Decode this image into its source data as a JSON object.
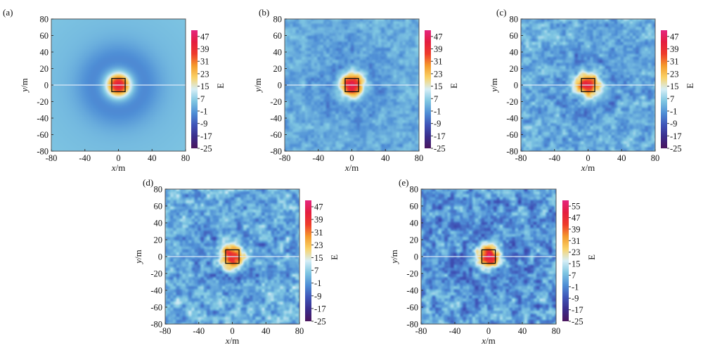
{
  "chart_data": [
    {
      "type": "heatmap",
      "panel_label": "(a)",
      "xlabel": "x",
      "xunit": "/m",
      "ylabel": "y",
      "yunit": "/m",
      "xlim": [
        -80,
        80
      ],
      "ylim": [
        -80,
        80
      ],
      "xticks": [
        -80,
        -40,
        0,
        40,
        80
      ],
      "yticks": [
        80,
        60,
        40,
        20,
        0,
        -20,
        -40,
        -60,
        -80
      ],
      "colorbar_title": "E",
      "colorbar_ticks": [
        47,
        39,
        31,
        23,
        15,
        7,
        -1,
        -9,
        -17,
        -25
      ],
      "color_range": [
        -25,
        51
      ],
      "background_level": 2,
      "noise_amplitude": 0,
      "anomaly": {
        "center": [
          0,
          0
        ],
        "peak": 45,
        "radius": 14,
        "square_half_width": 8
      },
      "profile_line_y": 0
    },
    {
      "type": "heatmap",
      "panel_label": "(b)",
      "xlabel": "x",
      "xunit": "/m",
      "ylabel": "y",
      "yunit": "/m",
      "xlim": [
        -80,
        80
      ],
      "ylim": [
        -80,
        80
      ],
      "xticks": [
        -80,
        -40,
        0,
        40,
        80
      ],
      "yticks": [
        80,
        60,
        40,
        20,
        0,
        -20,
        -40,
        -60,
        -80
      ],
      "colorbar_title": "E",
      "colorbar_ticks": [
        47,
        39,
        31,
        23,
        15,
        7,
        -1,
        -9,
        -17,
        -25
      ],
      "color_range": [
        -25,
        51
      ],
      "background_level": 2,
      "noise_amplitude": 5,
      "anomaly": {
        "center": [
          0,
          0
        ],
        "peak": 45,
        "radius": 14,
        "square_half_width": 8
      },
      "profile_line_y": 0
    },
    {
      "type": "heatmap",
      "panel_label": "(c)",
      "xlabel": "x",
      "xunit": "/m",
      "ylabel": "y",
      "yunit": "/m",
      "xlim": [
        -80,
        80
      ],
      "ylim": [
        -80,
        80
      ],
      "xticks": [
        -80,
        -40,
        0,
        40,
        80
      ],
      "yticks": [
        80,
        60,
        40,
        20,
        0,
        -20,
        -40,
        -60,
        -80
      ],
      "colorbar_title": "E",
      "colorbar_ticks": [
        47,
        39,
        31,
        23,
        15,
        7,
        -1,
        -9,
        -17,
        -25
      ],
      "color_range": [
        -25,
        51
      ],
      "background_level": 2,
      "noise_amplitude": 7,
      "anomaly": {
        "center": [
          0,
          0
        ],
        "peak": 45,
        "radius": 14,
        "square_half_width": 8
      },
      "profile_line_y": 0
    },
    {
      "type": "heatmap",
      "panel_label": "(d)",
      "xlabel": "x",
      "xunit": "/m",
      "ylabel": "y",
      "yunit": "/m",
      "xlim": [
        -80,
        80
      ],
      "ylim": [
        -80,
        80
      ],
      "xticks": [
        -80,
        -40,
        0,
        40,
        80
      ],
      "yticks": [
        80,
        60,
        40,
        20,
        0,
        -20,
        -40,
        -60,
        -80
      ],
      "colorbar_title": "E",
      "colorbar_ticks": [
        47,
        39,
        31,
        23,
        15,
        7,
        -1,
        -9,
        -17,
        -25
      ],
      "color_range": [
        -25,
        51
      ],
      "background_level": 2,
      "noise_amplitude": 9,
      "anomaly": {
        "center": [
          0,
          0
        ],
        "peak": 45,
        "radius": 14,
        "square_half_width": 8
      },
      "profile_line_y": 0
    },
    {
      "type": "heatmap",
      "panel_label": "(e)",
      "xlabel": "x",
      "xunit": "/m",
      "ylabel": "y",
      "yunit": "/m",
      "xlim": [
        -80,
        80
      ],
      "ylim": [
        -80,
        80
      ],
      "xticks": [
        -80,
        -40,
        0,
        40,
        80
      ],
      "yticks": [
        80,
        60,
        40,
        20,
        0,
        -20,
        -40,
        -60,
        -80
      ],
      "colorbar_title": "E",
      "colorbar_ticks": [
        55,
        47,
        39,
        31,
        23,
        15,
        7,
        -1,
        -9,
        -17,
        -25
      ],
      "color_range": [
        -25,
        59
      ],
      "background_level": 2,
      "noise_amplitude": 11,
      "anomaly": {
        "center": [
          0,
          0
        ],
        "peak": 50,
        "radius": 14,
        "square_half_width": 8
      },
      "profile_line_y": 0
    }
  ],
  "colormap": [
    "#4a155e",
    "#3a2d8c",
    "#3f55b8",
    "#4f8fd6",
    "#7fc6e2",
    "#d6eef6",
    "#f9d267",
    "#f49a2c",
    "#ee3b2b",
    "#e41e3f",
    "#e4257e"
  ],
  "colors": {
    "profile_line": "#dbe9f7",
    "square": "#111111",
    "frame": "#555555"
  }
}
